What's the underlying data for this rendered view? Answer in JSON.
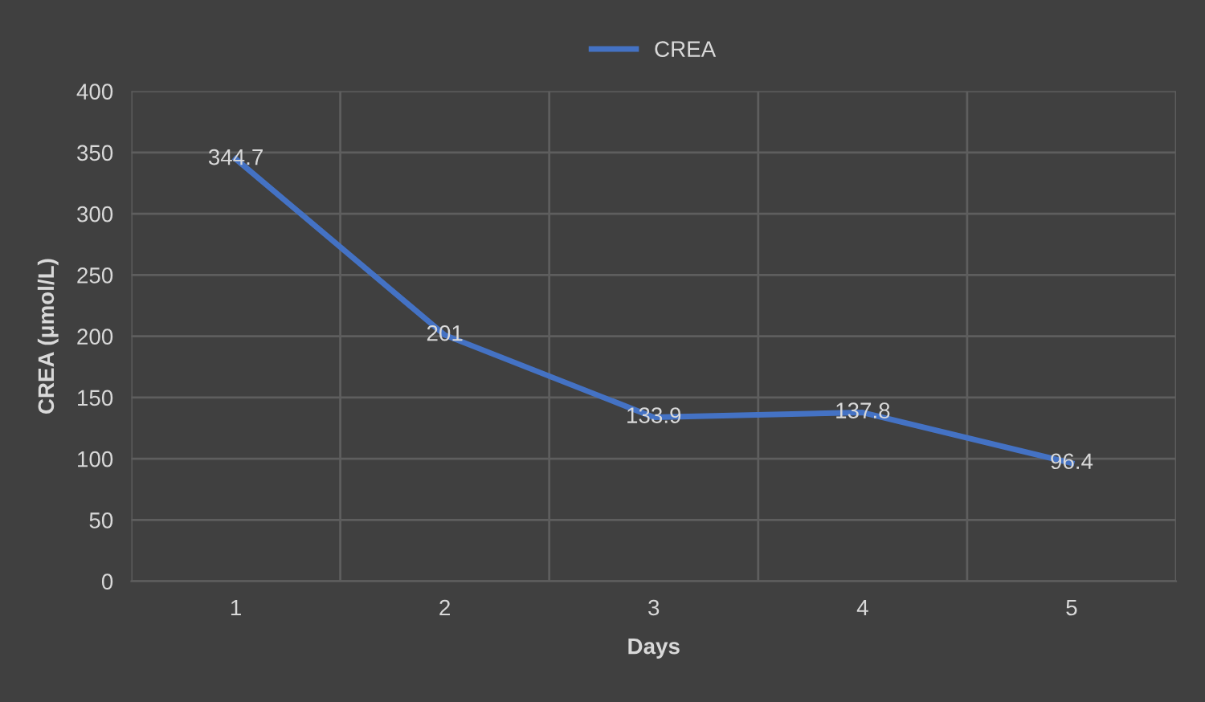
{
  "chart_data": {
    "type": "line",
    "xlabel": "Days",
    "ylabel": "CREA (μmol/L)",
    "categories": [
      "1",
      "2",
      "3",
      "4",
      "5"
    ],
    "series": [
      {
        "name": "CREA",
        "color": "#4472c4",
        "values": [
          344.7,
          201,
          133.9,
          137.8,
          96.4
        ]
      }
    ],
    "ylim": [
      0,
      400
    ],
    "yticks": [
      0,
      50,
      100,
      150,
      200,
      250,
      300,
      350,
      400
    ],
    "grid": true,
    "legend": "top",
    "data_labels": true,
    "marker": "none",
    "line_style": "solid"
  }
}
